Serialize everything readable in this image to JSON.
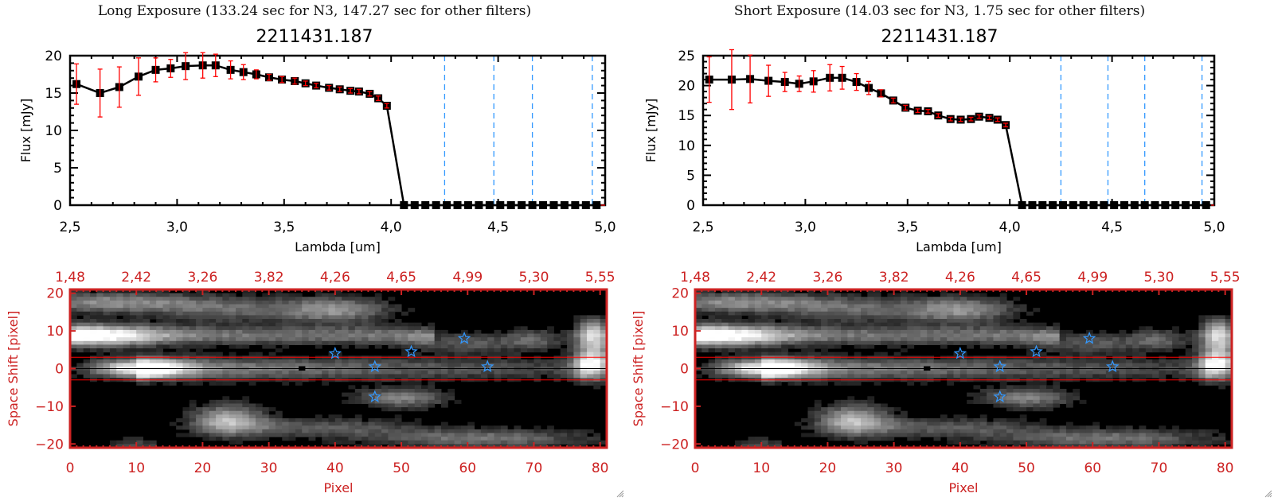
{
  "panels": [
    {
      "id": "long",
      "title": "Long Exposure (133.24 sec for N3, 147.27 sec for other filters)",
      "object_id": "2211431.187"
    },
    {
      "id": "short",
      "title": "Short Exposure (14.03 sec for N3, 1.75 sec for other filters)",
      "object_id": "2211431.187"
    }
  ],
  "chart_data": [
    {
      "panel": "long",
      "type": "line",
      "title": "2211431.187",
      "xlabel": "Lambda [um]",
      "ylabel": "Flux [mJy]",
      "xlim": [
        2.5,
        5.0
      ],
      "ylim": [
        0,
        20
      ],
      "xticks": [
        "2.5",
        "3.0",
        "3.5",
        "4.0",
        "4.5",
        "5.0"
      ],
      "yticks": [
        "0",
        "5",
        "10",
        "15",
        "20"
      ],
      "colors": {
        "line": "#000000",
        "marker": "#000000",
        "errorbar": "#ff0000",
        "filter_lines": "#3399ff",
        "zero_line": "#ff0000"
      },
      "series": [
        {
          "name": "flux",
          "x": [
            2.53,
            2.64,
            2.73,
            2.82,
            2.9,
            2.97,
            3.04,
            3.12,
            3.18,
            3.25,
            3.31,
            3.37,
            3.43,
            3.49,
            3.55,
            3.6,
            3.65,
            3.71,
            3.76,
            3.81,
            3.85,
            3.9,
            3.94,
            3.98,
            4.06,
            4.11,
            4.16,
            4.21,
            4.26,
            4.31,
            4.36,
            4.41,
            4.46,
            4.51,
            4.56,
            4.61,
            4.66,
            4.71,
            4.76,
            4.81,
            4.86,
            4.91,
            4.96
          ],
          "y": [
            16.2,
            15.0,
            15.8,
            17.2,
            18.1,
            18.3,
            18.6,
            18.7,
            18.7,
            18.1,
            17.8,
            17.5,
            17.1,
            16.8,
            16.6,
            16.3,
            16.0,
            15.7,
            15.5,
            15.3,
            15.2,
            14.9,
            14.3,
            13.3,
            0,
            0,
            0,
            0,
            0,
            0,
            0,
            0,
            0,
            0,
            0,
            0,
            0,
            0,
            0,
            0,
            0,
            0,
            0
          ],
          "yerr": [
            2.7,
            3.2,
            2.7,
            2.5,
            1.6,
            1.2,
            1.8,
            1.7,
            1.5,
            1.2,
            1.0,
            0.6,
            0.4,
            0.4,
            0.4,
            0.3,
            0.3,
            0.3,
            0.3,
            0.3,
            0.3,
            0.3,
            0.3,
            0.3,
            0,
            0,
            0,
            0,
            0,
            0,
            0,
            0,
            0,
            0,
            0,
            0,
            0,
            0,
            0,
            0,
            0,
            0,
            0
          ]
        }
      ],
      "filter_lines_x": [
        4.25,
        4.48,
        4.66,
        4.94
      ]
    },
    {
      "panel": "short",
      "type": "line",
      "title": "2211431.187",
      "xlabel": "Lambda [um]",
      "ylabel": "Flux [mJy]",
      "xlim": [
        2.5,
        5.0
      ],
      "ylim": [
        0,
        25
      ],
      "xticks": [
        "2.5",
        "3.0",
        "3.5",
        "4.0",
        "4.5",
        "5.0"
      ],
      "yticks": [
        "0",
        "5",
        "10",
        "15",
        "20",
        "25"
      ],
      "colors": {
        "line": "#000000",
        "marker": "#000000",
        "errorbar": "#ff0000",
        "filter_lines": "#3399ff",
        "zero_line": "#ff0000"
      },
      "series": [
        {
          "name": "flux",
          "x": [
            2.53,
            2.64,
            2.73,
            2.82,
            2.9,
            2.97,
            3.04,
            3.12,
            3.18,
            3.25,
            3.31,
            3.37,
            3.43,
            3.49,
            3.55,
            3.6,
            3.65,
            3.71,
            3.76,
            3.81,
            3.85,
            3.9,
            3.94,
            3.98,
            4.06,
            4.11,
            4.16,
            4.21,
            4.26,
            4.31,
            4.36,
            4.41,
            4.46,
            4.51,
            4.56,
            4.61,
            4.66,
            4.71,
            4.76,
            4.81,
            4.86,
            4.91,
            4.96
          ],
          "y": [
            21.0,
            21.0,
            21.1,
            20.8,
            20.6,
            20.3,
            20.7,
            21.3,
            21.3,
            20.6,
            19.6,
            18.7,
            17.5,
            16.3,
            15.8,
            15.7,
            15.0,
            14.4,
            14.3,
            14.4,
            14.8,
            14.6,
            14.3,
            13.4,
            0,
            0,
            0,
            0,
            0,
            0,
            0,
            0,
            0,
            0,
            0,
            0,
            0,
            0,
            0,
            0,
            0,
            0,
            0
          ],
          "yerr": [
            3.8,
            5.0,
            4.0,
            2.6,
            1.6,
            1.3,
            1.8,
            2.2,
            1.9,
            1.4,
            1.1,
            0.6,
            0.4,
            0.4,
            0.3,
            0.3,
            0.3,
            0.3,
            0.3,
            0.3,
            0.3,
            0.3,
            0.3,
            0.3,
            0,
            0,
            0,
            0,
            0,
            0,
            0,
            0,
            0,
            0,
            0,
            0,
            0,
            0,
            0,
            0,
            0,
            0,
            0
          ]
        }
      ],
      "filter_lines_x": [
        4.25,
        4.48,
        4.66,
        4.94
      ]
    },
    {
      "panel": "long",
      "type": "heatmap",
      "xlabel": "Pixel",
      "ylabel": "Space Shift [pixel]",
      "xlim": [
        0,
        81
      ],
      "ylim": [
        -21,
        21
      ],
      "xticks": [
        "0",
        "10",
        "20",
        "30",
        "40",
        "50",
        "60",
        "70",
        "80"
      ],
      "yticks": [
        "-20",
        "-10",
        "0",
        "10",
        "20"
      ],
      "top_xticks": [
        "1.48",
        "2.42",
        "3.26",
        "3.82",
        "4.26",
        "4.65",
        "4.99",
        "5.30",
        "5.55"
      ],
      "aperture_y": [
        -3,
        3
      ],
      "center_y": 0,
      "stars": [
        [
          40,
          4
        ],
        [
          46,
          0.5
        ],
        [
          51.5,
          4.5
        ],
        [
          59.5,
          8
        ],
        [
          63,
          0.5
        ],
        [
          46,
          -7.5
        ]
      ],
      "colors": {
        "axis": "#cc2222",
        "aperture": "#ff0000",
        "stars": "#3399ff"
      }
    },
    {
      "panel": "short",
      "type": "heatmap",
      "xlabel": "Pixel",
      "ylabel": "Space Shift [pixel]",
      "xlim": [
        0,
        81
      ],
      "ylim": [
        -21,
        21
      ],
      "xticks": [
        "0",
        "10",
        "20",
        "30",
        "40",
        "50",
        "60",
        "70",
        "80"
      ],
      "yticks": [
        "-20",
        "-10",
        "0",
        "10",
        "20"
      ],
      "top_xticks": [
        "1.48",
        "2.42",
        "3.26",
        "3.82",
        "4.26",
        "4.65",
        "4.99",
        "5.30",
        "5.55"
      ],
      "aperture_y": [
        -3,
        3
      ],
      "center_y": 0,
      "stars": [
        [
          40,
          4
        ],
        [
          46,
          0.5
        ],
        [
          51.5,
          4.5
        ],
        [
          59.5,
          8
        ],
        [
          63,
          0.5
        ],
        [
          46,
          -7.5
        ]
      ],
      "colors": {
        "axis": "#cc2222",
        "aperture": "#ff0000",
        "stars": "#3399ff"
      }
    }
  ]
}
